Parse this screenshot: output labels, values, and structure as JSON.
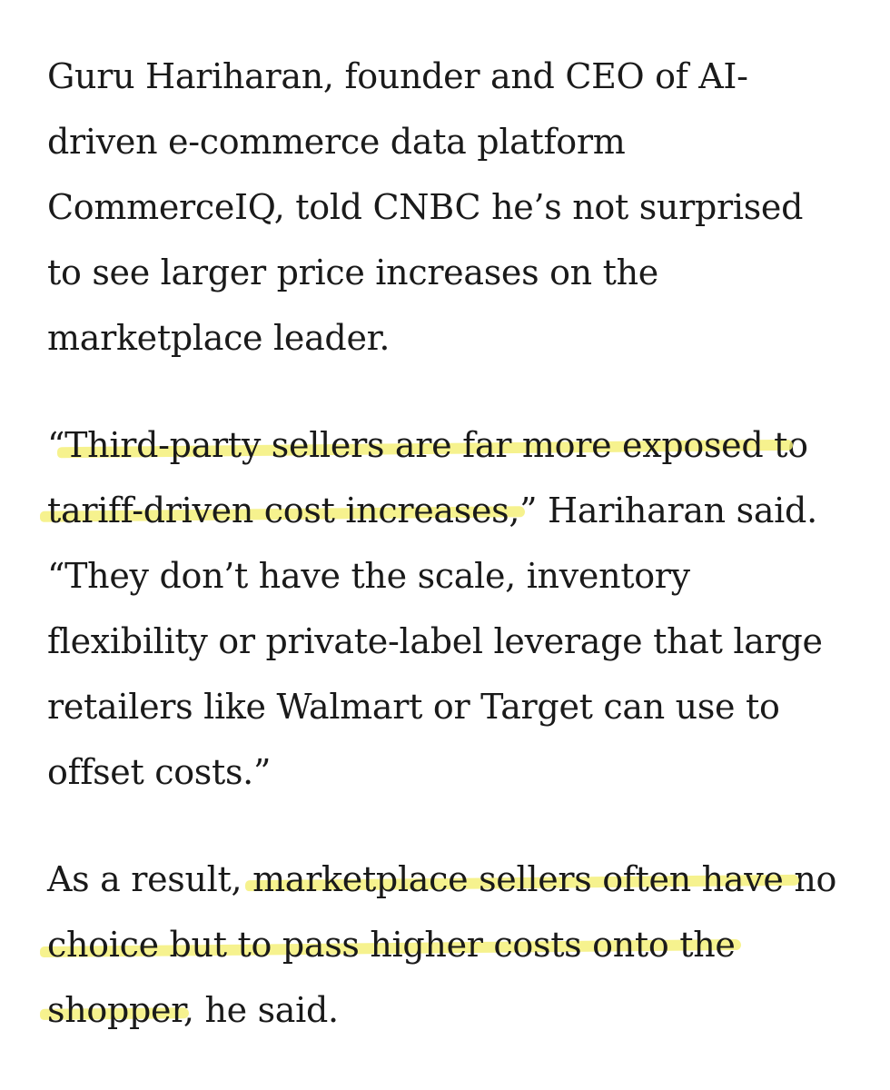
{
  "paragraphs": [
    {
      "lines": [
        [
          {
            "text": "Guru Hariharan, founder and CEO of AI-",
            "highlight": false
          }
        ],
        [
          {
            "text": "driven e-commerce data platform",
            "highlight": false
          }
        ],
        [
          {
            "text": "CommerceIQ, told CNBC he’s not surprised",
            "highlight": false
          }
        ],
        [
          {
            "text": "to see larger price increases on the",
            "highlight": false
          }
        ],
        [
          {
            "text": "marketplace leader.",
            "highlight": false
          }
        ]
      ]
    },
    {
      "lines": [
        [
          {
            "text": "“",
            "highlight": false
          },
          {
            "text": "Third-party sellers are far more exposed t",
            "highlight": true
          },
          {
            "text": "o",
            "highlight": false
          }
        ],
        [
          {
            "text": "tariff-driven cost increases,",
            "highlight": true
          },
          {
            "text": "” Hariharan said.",
            "highlight": false
          }
        ],
        [
          {
            "text": "“They don’t have the scale, inventory",
            "highlight": false
          }
        ],
        [
          {
            "text": "flexibility or private-label leverage that large",
            "highlight": false
          }
        ],
        [
          {
            "text": "retailers like Walmart or Target can use to",
            "highlight": false
          }
        ],
        [
          {
            "text": "offset costs.”",
            "highlight": false
          }
        ]
      ]
    },
    {
      "lines": [
        [
          {
            "text": "As a result, ",
            "highlight": false
          },
          {
            "text": "marketplace sellers often have ",
            "highlight": true
          },
          {
            "text": "no",
            "highlight": false
          }
        ],
        [
          {
            "text": "choice but to pass higher costs onto the",
            "highlight": true
          }
        ],
        [
          {
            "text": "shopper",
            "highlight": true
          },
          {
            "text": ", he said.",
            "highlight": false
          }
        ]
      ]
    }
  ],
  "colors": {
    "text": "#1a1a1a",
    "highlight": "#f4f07a",
    "background": "#ffffff"
  }
}
